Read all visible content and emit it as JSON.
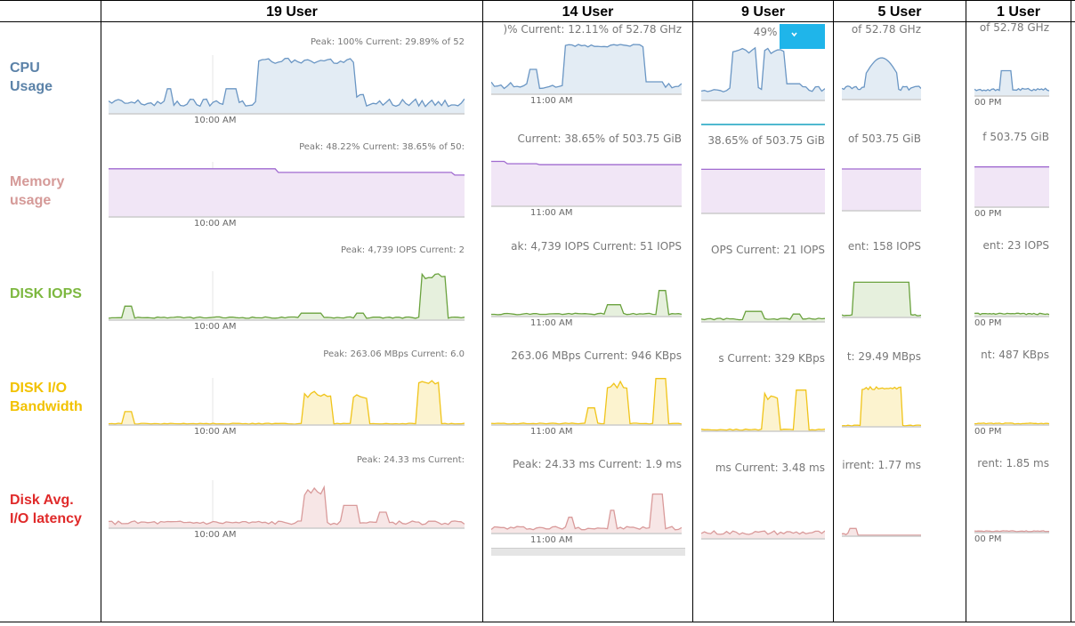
{
  "columns": [
    "19 User",
    "14 User",
    "9 User",
    "5 User",
    "1 User"
  ],
  "rows": [
    {
      "label": "CPU\nUsage",
      "color": "#5b82a8"
    },
    {
      "label": "Memory\nusage",
      "color": "#d59a98"
    },
    {
      "label": "DISK IOPS",
      "color": "#7db840"
    },
    {
      "label": "DISK I/O\nBandwidth",
      "color": "#f2c200"
    },
    {
      "label": "Disk Avg.\nI/O latency",
      "color": "#e02a2a"
    }
  ],
  "series_colors": {
    "cpu": {
      "line": "#6a96c4",
      "fill": "#e3ecf4"
    },
    "memory": {
      "line": "#a06ad0",
      "fill": "#f1e6f6"
    },
    "iops": {
      "line": "#6aa23e",
      "fill": "#e6f0dd"
    },
    "bandwidth": {
      "line": "#f0c419",
      "fill": "#fcf3cf"
    },
    "latency": {
      "line": "#d99a9a",
      "fill": "#f7e6e6"
    }
  },
  "dropdown_icon": "chevron-down-icon",
  "panels": [
    {
      "id": "c0r0",
      "info": "Peak: 100%   Current: 29.89% of 52",
      "time": "10:00 AM",
      "series": "cpu"
    },
    {
      "id": "c0r1",
      "info": "Peak: 48.22%   Current: 38.65% of 50:",
      "time": "10:00 AM",
      "series": "memory"
    },
    {
      "id": "c0r2",
      "info": "Peak: 4,739 IOPS   Current: 2",
      "time": "10:00 AM",
      "series": "iops"
    },
    {
      "id": "c0r3",
      "info": "Peak: 263.06 MBps   Current: 6.0",
      "time": "10:00 AM",
      "series": "bandwidth"
    },
    {
      "id": "c0r4",
      "info": "Peak: 24.33 ms   Current:",
      "time": "10:00 AM",
      "series": "latency"
    },
    {
      "id": "c1r0",
      "info": ")%   Current: 12.11% of 52.78 GHz",
      "time": "11:00 AM",
      "series": "cpu"
    },
    {
      "id": "c1r1",
      "info": "Current: 38.65% of 503.75 GiB",
      "time": "11:00 AM",
      "series": "memory"
    },
    {
      "id": "c1r2",
      "info": "ak: 4,739 IOPS   Current: 51 IOPS",
      "time": "11:00 AM",
      "series": "iops"
    },
    {
      "id": "c1r3",
      "info": "263.06 MBps   Current: 946 KBps",
      "time": "11:00 AM",
      "series": "bandwidth"
    },
    {
      "id": "c1r4",
      "info": "Peak: 24.33 ms   Current: 1.9 ms",
      "time": "11:00 AM",
      "series": "latency"
    },
    {
      "id": "c2r0",
      "info": "49% of 52.78",
      "time": "",
      "series": "cpu"
    },
    {
      "id": "c2r1",
      "info": "38.65% of 503.75 GiB",
      "time": "",
      "series": "memory"
    },
    {
      "id": "c2r2",
      "info": "OPS   Current: 21 IOPS",
      "time": "",
      "series": "iops"
    },
    {
      "id": "c2r3",
      "info": "s   Current: 329 KBps",
      "time": "",
      "series": "bandwidth"
    },
    {
      "id": "c2r4",
      "info": "ms   Current: 3.48 ms",
      "time": "",
      "series": "latency"
    },
    {
      "id": "c3r0",
      "info": "of 52.78 GHz",
      "time": "",
      "series": "cpu"
    },
    {
      "id": "c3r1",
      "info": "of 503.75 GiB",
      "time": "",
      "series": "memory"
    },
    {
      "id": "c3r2",
      "info": "ent: 158 IOPS",
      "time": "",
      "series": "iops"
    },
    {
      "id": "c3r3",
      "info": "t: 29.49 MBps",
      "time": "",
      "series": "bandwidth"
    },
    {
      "id": "c3r4",
      "info": "irrent: 1.77 ms",
      "time": "",
      "series": "latency"
    },
    {
      "id": "c4r0",
      "info": "of 52.78 GHz",
      "time": "00 PM",
      "series": "cpu"
    },
    {
      "id": "c4r1",
      "info": "f 503.75 GiB",
      "time": "00 PM",
      "series": "memory"
    },
    {
      "id": "c4r2",
      "info": "ent: 23 IOPS",
      "time": "00 PM",
      "series": "iops"
    },
    {
      "id": "c4r3",
      "info": "nt: 487 KBps",
      "time": "00 PM",
      "series": "bandwidth"
    },
    {
      "id": "c4r4",
      "info": "rent: 1.85 ms",
      "time": "00 PM",
      "series": "latency"
    }
  ]
}
